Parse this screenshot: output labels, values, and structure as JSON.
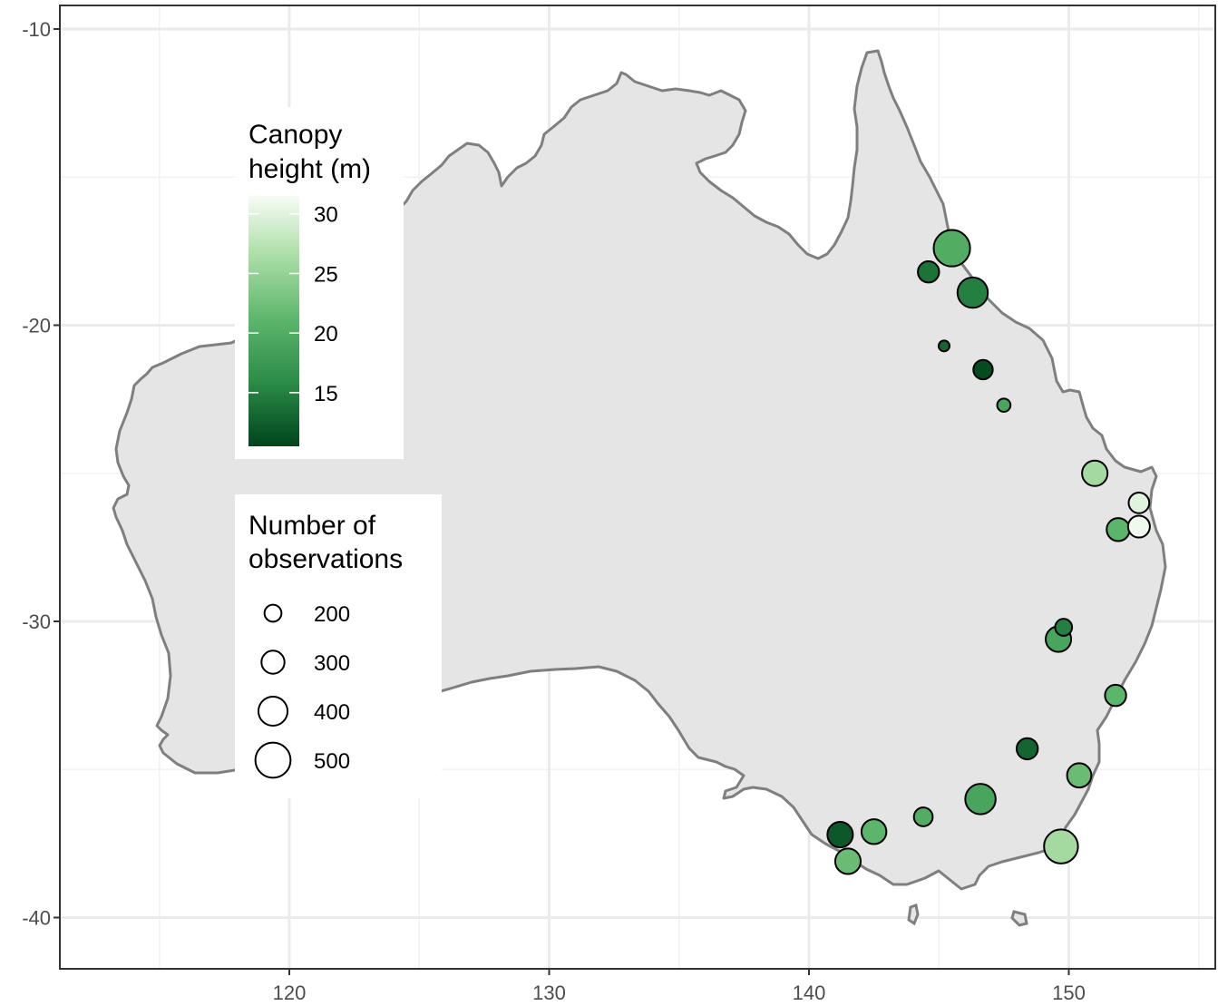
{
  "chart_data": {
    "type": "scatter",
    "title": "",
    "xlabel": "",
    "ylabel": "",
    "xlim": [
      112,
      155
    ],
    "ylim": [
      -41.8,
      -9.2
    ],
    "x_ticks": [
      120,
      130,
      140,
      150
    ],
    "y_ticks": [
      -10,
      -20,
      -30,
      -40
    ],
    "x_tick_labels": [
      "120",
      "130",
      "140",
      "150"
    ],
    "y_tick_labels": [
      "-10",
      "-20",
      "-30",
      "-40"
    ],
    "grid": true,
    "basemap": "Australia coastline (grey fill #e5e5e5, outline #7f7f7f)",
    "colors": {
      "land_fill": "#e5e5e5",
      "coast": "#7f7f7f",
      "low": "#00441b",
      "mid": "#41ab5d",
      "high": "#f7fcf5"
    },
    "color_legend": {
      "title": [
        "Canopy",
        "height (m)"
      ],
      "breaks": [
        30,
        25,
        20,
        15
      ],
      "breaks_labels": [
        "30",
        "25",
        "20",
        "15"
      ],
      "range": [
        10.5,
        31.5
      ],
      "placement": "left-top"
    },
    "size_legend": {
      "title": [
        "Number of",
        "observations"
      ],
      "breaks": [
        200,
        300,
        400,
        500
      ],
      "breaks_labels": [
        "200",
        "300",
        "400",
        "500"
      ],
      "placement": "left-middle"
    },
    "points": [
      {
        "lon": 145.5,
        "lat": -17.4,
        "canopy_height": 20,
        "observations": 520
      },
      {
        "lon": 144.6,
        "lat": -18.2,
        "canopy_height": 14,
        "observations": 270
      },
      {
        "lon": 146.3,
        "lat": -18.9,
        "canopy_height": 15,
        "observations": 420
      },
      {
        "lon": 145.2,
        "lat": -20.7,
        "canopy_height": 13,
        "observations": 100
      },
      {
        "lon": 146.7,
        "lat": -21.5,
        "canopy_height": 11,
        "observations": 240
      },
      {
        "lon": 147.5,
        "lat": -22.7,
        "canopy_height": 19,
        "observations": 140
      },
      {
        "lon": 151.0,
        "lat": -25.0,
        "canopy_height": 26,
        "observations": 340
      },
      {
        "lon": 152.7,
        "lat": -26.0,
        "canopy_height": 30,
        "observations": 260
      },
      {
        "lon": 152.7,
        "lat": -26.8,
        "canopy_height": 31,
        "observations": 280
      },
      {
        "lon": 151.9,
        "lat": -26.9,
        "canopy_height": 21,
        "observations": 300
      },
      {
        "lon": 149.8,
        "lat": -30.2,
        "canopy_height": 15,
        "observations": 200
      },
      {
        "lon": 149.6,
        "lat": -30.6,
        "canopy_height": 19,
        "observations": 340
      },
      {
        "lon": 151.8,
        "lat": -32.5,
        "canopy_height": 21,
        "observations": 270
      },
      {
        "lon": 148.4,
        "lat": -34.3,
        "canopy_height": 13,
        "observations": 270
      },
      {
        "lon": 150.4,
        "lat": -35.2,
        "canopy_height": 22,
        "observations": 320
      },
      {
        "lon": 146.6,
        "lat": -36.0,
        "canopy_height": 19,
        "observations": 420
      },
      {
        "lon": 144.4,
        "lat": -36.6,
        "canopy_height": 20,
        "observations": 230
      },
      {
        "lon": 142.5,
        "lat": -37.1,
        "canopy_height": 21,
        "observations": 330
      },
      {
        "lon": 141.2,
        "lat": -37.2,
        "canopy_height": 12,
        "observations": 340
      },
      {
        "lon": 141.5,
        "lat": -38.1,
        "canopy_height": 22,
        "observations": 340
      },
      {
        "lon": 149.7,
        "lat": -37.6,
        "canopy_height": 26,
        "observations": 480
      }
    ]
  }
}
